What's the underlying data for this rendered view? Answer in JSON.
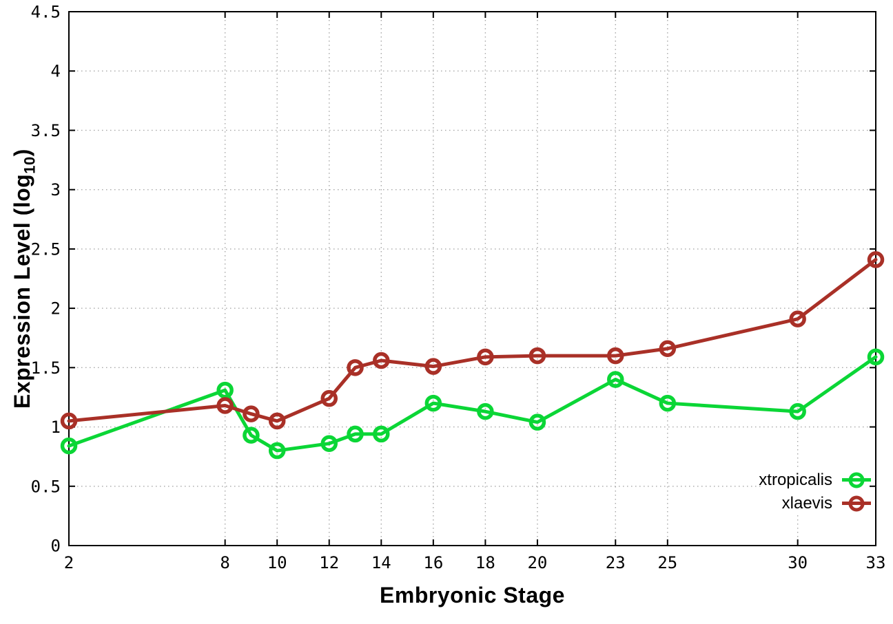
{
  "chart_data": {
    "type": "line",
    "title": "",
    "xlabel": "Embryonic Stage",
    "ylabel": "Expression Level (log10)",
    "ylabel_parts": {
      "base": "Expression Level (log",
      "sub": "10",
      "close": ")"
    },
    "xlim": [
      2,
      33
    ],
    "ylim": [
      0,
      4.5
    ],
    "xticks": [
      2,
      8,
      10,
      12,
      14,
      16,
      18,
      20,
      23,
      25,
      30,
      33
    ],
    "xtick_labels": [
      "2",
      "8",
      "10",
      "12",
      "14",
      "16",
      "18",
      "20",
      "23",
      "25",
      "30",
      "33"
    ],
    "yticks": [
      0,
      0.5,
      1,
      1.5,
      2,
      2.5,
      3,
      3.5,
      4,
      4.5
    ],
    "ytick_labels": [
      "0",
      "0.5",
      "1",
      "1.5",
      "2",
      "2.5",
      "3",
      "3.5",
      "4",
      "4.5"
    ],
    "grid": true,
    "legend_position": "inside-bottom-right",
    "axis_color": "#000000",
    "grid_color": "#a6a6a6",
    "background": "#ffffff",
    "x": [
      2,
      8,
      9,
      10,
      12,
      13,
      14,
      16,
      18,
      20,
      23,
      25,
      30,
      33
    ],
    "series": [
      {
        "name": "xtropicalis",
        "color": "#0bd636",
        "marker": "open-circle",
        "values": [
          0.84,
          1.31,
          0.93,
          0.8,
          0.86,
          0.94,
          0.94,
          1.2,
          1.13,
          1.04,
          1.4,
          1.2,
          1.13,
          1.59
        ]
      },
      {
        "name": "xlaevis",
        "color": "#a93027",
        "marker": "open-circle",
        "values": [
          1.05,
          1.18,
          1.11,
          1.05,
          1.24,
          1.5,
          1.56,
          1.51,
          1.59,
          1.6,
          1.6,
          1.66,
          1.91,
          2.41
        ]
      }
    ]
  }
}
